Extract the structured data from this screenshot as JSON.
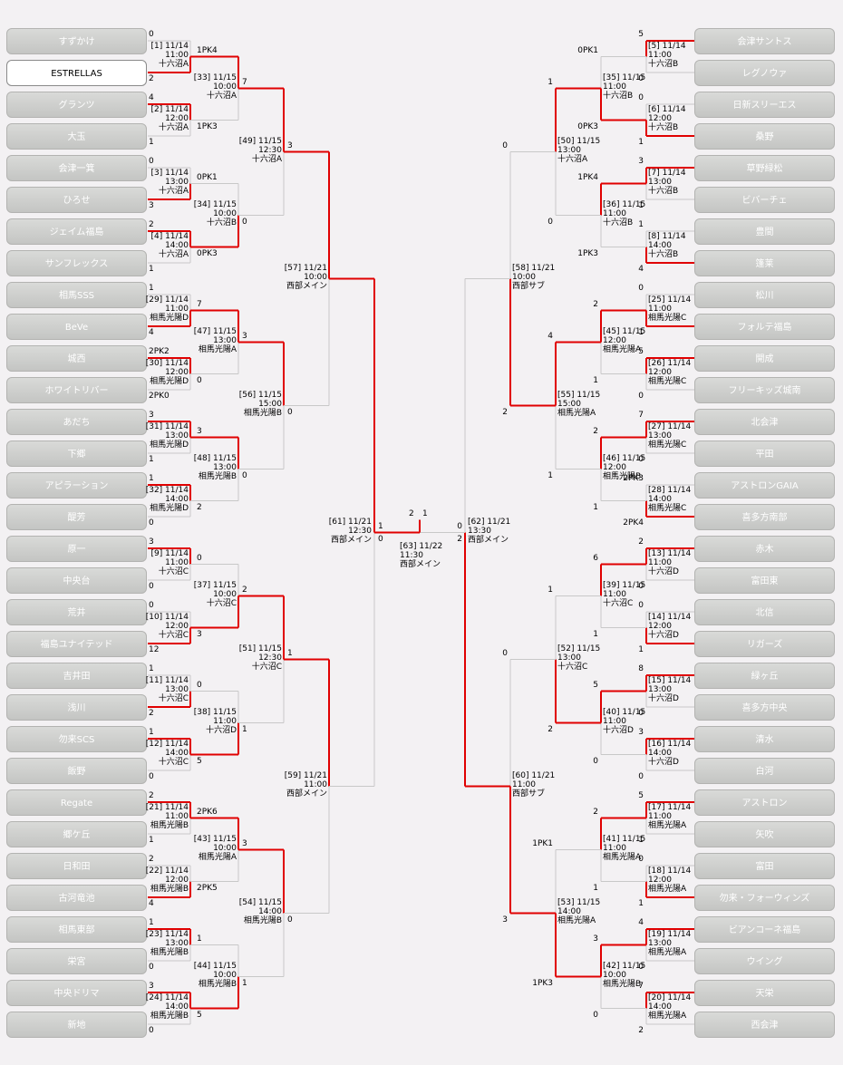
{
  "teams_left": [
    "すずかけ",
    "ESTRELLAS",
    "グランツ",
    "大玉",
    "会津一箕",
    "ひろせ",
    "ジェイム福島",
    "サンフレックス",
    "相馬SSS",
    "BeVe",
    "城西",
    "ホワイトリバー",
    "あだち",
    "下郷",
    "アピラーション",
    "醍芳",
    "原一",
    "中央台",
    "荒井",
    "福島ユナイテッド",
    "吉井田",
    "浅川",
    "勿来SCS",
    "飯野",
    "Regate",
    "郷ケ丘",
    "日和田",
    "古河竜池",
    "相馬東部",
    "栄宮",
    "中央ドリマ",
    "新地"
  ],
  "teams_right": [
    "会津サントス",
    "レグノウァ",
    "日新スリーエス",
    "桑野",
    "草野緑松",
    "ビバーチェ",
    "豊間",
    "篷莱",
    "松川",
    "フォルテ福島",
    "開成",
    "フリーキッズ城南",
    "北会津",
    "平田",
    "アストロンGAIA",
    "喜多方南部",
    "赤木",
    "富田東",
    "北信",
    "リガーズ",
    "緑ヶ丘",
    "喜多方中央",
    "清水",
    "白河",
    "アストロン",
    "矢吹",
    "富田",
    "勿来・フォーウィンズ",
    "ビアンコーネ福島",
    "ウイング",
    "天栄",
    "西会津"
  ],
  "highlight_team": "ESTRELLAS",
  "line_color_win": "#e00000",
  "line_color_normal": "#c8c8c8",
  "r1_left": [
    {
      "id": "[1] 11/14",
      "time": "11:00",
      "venue": "十六沼A",
      "s1": "0",
      "s2": "2"
    },
    {
      "id": "[2] 11/14",
      "time": "12:00",
      "venue": "十六沼A",
      "s1": "4",
      "s2": "1"
    },
    {
      "id": "[3] 11/14",
      "time": "13:00",
      "venue": "十六沼A",
      "s1": "0",
      "s2": "3"
    },
    {
      "id": "[4] 11/14",
      "time": "14:00",
      "venue": "十六沼A",
      "s1": "2",
      "s2": "1"
    },
    {
      "id": "[29] 11/14",
      "time": "11:00",
      "venue": "相馬光陽D",
      "s1": "1",
      "s2": "4"
    },
    {
      "id": "[30] 11/14",
      "time": "12:00",
      "venue": "相馬光陽D",
      "s1": "2PK2",
      "s2": "2PK0"
    },
    {
      "id": "[31] 11/14",
      "time": "13:00",
      "venue": "相馬光陽D",
      "s1": "3",
      "s2": "1"
    },
    {
      "id": "[32] 11/14",
      "time": "14:00",
      "venue": "相馬光陽D",
      "s1": "1",
      "s2": "0"
    },
    {
      "id": "[9] 11/14",
      "time": "11:00",
      "venue": "十六沼C",
      "s1": "3",
      "s2": "0"
    },
    {
      "id": "[10] 11/14",
      "time": "12:00",
      "venue": "十六沼C",
      "s1": "0",
      "s2": "12"
    },
    {
      "id": "[11] 11/14",
      "time": "13:00",
      "venue": "十六沼C",
      "s1": "1",
      "s2": "2"
    },
    {
      "id": "[12] 11/14",
      "time": "14:00",
      "venue": "十六沼C",
      "s1": "1",
      "s2": "0"
    },
    {
      "id": "[21] 11/14",
      "time": "11:00",
      "venue": "相馬光陽B",
      "s1": "2",
      "s2": "1"
    },
    {
      "id": "[22] 11/14",
      "time": "12:00",
      "venue": "相馬光陽B",
      "s1": "2",
      "s2": "4"
    },
    {
      "id": "[23] 11/14",
      "time": "13:00",
      "venue": "相馬光陽B",
      "s1": "1",
      "s2": "0"
    },
    {
      "id": "[24] 11/14",
      "time": "14:00",
      "venue": "相馬光陽B",
      "s1": "3",
      "s2": "0"
    }
  ],
  "r2_left": [
    {
      "id": "[33] 11/15",
      "time": "10:00",
      "venue": "十六沼A",
      "s1": "1PK4",
      "s2": "1PK3"
    },
    {
      "id": "[34] 11/15",
      "time": "10:00",
      "venue": "十六沼B",
      "s1": "0PK1",
      "s2": "0PK3"
    },
    {
      "id": "[47] 11/15",
      "time": "13:00",
      "venue": "相馬光陽A",
      "s1": "7",
      "s2": "0"
    },
    {
      "id": "[48] 11/15",
      "time": "13:00",
      "venue": "相馬光陽B",
      "s1": "3",
      "s2": "2"
    },
    {
      "id": "[37] 11/15",
      "time": "10:00",
      "venue": "十六沼C",
      "s1": "0",
      "s2": "3"
    },
    {
      "id": "[38] 11/15",
      "time": "11:00",
      "venue": "十六沼D",
      "s1": "0",
      "s2": "5"
    },
    {
      "id": "[43] 11/15",
      "time": "10:00",
      "venue": "相馬光陽A",
      "s1": "2PK6",
      "s2": "2PK5"
    },
    {
      "id": "[44] 11/15",
      "time": "10:00",
      "venue": "相馬光陽B",
      "s1": "1",
      "s2": "5"
    }
  ],
  "r3_left": [
    {
      "id": "[49] 11/15",
      "time": "12:30",
      "venue": "十六沼A",
      "s1": "7",
      "s2": "0"
    },
    {
      "id": "[56] 11/15",
      "time": "15:00",
      "venue": "相馬光陽B",
      "s1": "3",
      "s2": "0"
    },
    {
      "id": "[51] 11/15",
      "time": "12:30",
      "venue": "十六沼C",
      "s1": "2",
      "s2": "1"
    },
    {
      "id": "[54] 11/15",
      "time": "14:00",
      "venue": "相馬光陽B",
      "s1": "3",
      "s2": "1"
    }
  ],
  "r4_left": [
    {
      "id": "[57] 11/21",
      "time": "10:00",
      "venue": "西部メイン",
      "s1": "3",
      "s2": "0"
    },
    {
      "id": "[59] 11/21",
      "time": "11:00",
      "venue": "西部メイン",
      "s1": "1",
      "s2": "0"
    }
  ],
  "r5_left": {
    "id": "[61] 11/21",
    "time": "12:30",
    "venue": "西部メイン",
    "s1": "1",
    "s2": "0"
  },
  "r1_right": [
    {
      "id": "[5] 11/14",
      "time": "11:00",
      "venue": "十六沼B",
      "s1": "5",
      "s2": "0"
    },
    {
      "id": "[6] 11/14",
      "time": "12:00",
      "venue": "十六沼B",
      "s1": "0",
      "s2": "1"
    },
    {
      "id": "[7] 11/14",
      "time": "13:00",
      "venue": "十六沼B",
      "s1": "3",
      "s2": "1"
    },
    {
      "id": "[8] 11/14",
      "time": "14:00",
      "venue": "十六沼B",
      "s1": "1",
      "s2": "4"
    },
    {
      "id": "[25] 11/14",
      "time": "11:00",
      "venue": "相馬光陽C",
      "s1": "0",
      "s2": "1"
    },
    {
      "id": "[26] 11/14",
      "time": "12:00",
      "venue": "相馬光陽C",
      "s1": "5",
      "s2": "0"
    },
    {
      "id": "[27] 11/14",
      "time": "13:00",
      "venue": "相馬光陽C",
      "s1": "7",
      "s2": "0"
    },
    {
      "id": "[28] 11/14",
      "time": "14:00",
      "venue": "相馬光陽C",
      "s1": "2PK3",
      "s2": "2PK4"
    },
    {
      "id": "[13] 11/14",
      "time": "11:00",
      "venue": "十六沼D",
      "s1": "2",
      "s2": "0"
    },
    {
      "id": "[14] 11/14",
      "time": "12:00",
      "venue": "十六沼D",
      "s1": "0",
      "s2": "1"
    },
    {
      "id": "[15] 11/14",
      "time": "13:00",
      "venue": "十六沼D",
      "s1": "8",
      "s2": "0"
    },
    {
      "id": "[16] 11/14",
      "time": "14:00",
      "venue": "十六沼D",
      "s1": "3",
      "s2": "0"
    },
    {
      "id": "[17] 11/14",
      "time": "11:00",
      "venue": "相馬光陽A",
      "s1": "5",
      "s2": "1"
    },
    {
      "id": "[18] 11/14",
      "time": "12:00",
      "venue": "相馬光陽A",
      "s1": "0",
      "s2": "1"
    },
    {
      "id": "[19] 11/14",
      "time": "13:00",
      "venue": "相馬光陽A",
      "s1": "4",
      "s2": "0"
    },
    {
      "id": "[20] 11/14",
      "time": "14:00",
      "venue": "相馬光陽A",
      "s1": "7",
      "s2": "2"
    }
  ],
  "r2_right": [
    {
      "id": "[35] 11/15",
      "time": "11:00",
      "venue": "十六沼B",
      "s1": "0PK1",
      "s2": "0PK3"
    },
    {
      "id": "[36] 11/15",
      "time": "11:00",
      "venue": "十六沼B",
      "s1": "1PK4",
      "s2": "1PK3"
    },
    {
      "id": "[45] 11/15",
      "time": "12:00",
      "venue": "相馬光陽A",
      "s1": "2",
      "s2": "1"
    },
    {
      "id": "[46] 11/15",
      "time": "12:00",
      "venue": "相馬光陽B",
      "s1": "2",
      "s2": "1"
    },
    {
      "id": "[39] 11/15",
      "time": "11:00",
      "venue": "十六沼C",
      "s1": "6",
      "s2": "1"
    },
    {
      "id": "[40] 11/15",
      "time": "11:00",
      "venue": "十六沼D",
      "s1": "5",
      "s2": "0"
    },
    {
      "id": "[41] 11/15",
      "time": "11:00",
      "venue": "相馬光陽A",
      "s1": "2",
      "s2": "1"
    },
    {
      "id": "[42] 11/15",
      "time": "10:00",
      "venue": "相馬光陽B",
      "s1": "3",
      "s2": "0"
    }
  ],
  "r3_right": [
    {
      "id": "[50] 11/15",
      "time": "13:00",
      "venue": "十六沼A",
      "s1": "1",
      "s2": "0"
    },
    {
      "id": "[55] 11/15",
      "time": "15:00",
      "venue": "相馬光陽A",
      "s1": "4",
      "s2": "1"
    },
    {
      "id": "[52] 11/15",
      "time": "13:00",
      "venue": "十六沼C",
      "s1": "1",
      "s2": "2"
    },
    {
      "id": "[53] 11/15",
      "time": "14:00",
      "venue": "相馬光陽A",
      "s1": "1PK1",
      "s2": "1PK3"
    }
  ],
  "r4_right": [
    {
      "id": "[58] 11/21",
      "time": "10:00",
      "venue": "西部サブ",
      "s1": "0",
      "s2": "2"
    },
    {
      "id": "[60] 11/21",
      "time": "11:00",
      "venue": "西部サブ",
      "s1": "0",
      "s2": "3"
    }
  ],
  "r5_right": {
    "id": "[62] 11/21",
    "time": "13:30",
    "venue": "西部メイン",
    "s1": "0",
    "s2": "2"
  },
  "final": {
    "id": "[63] 11/22",
    "time": "11:30",
    "venue": "西部メイン",
    "s1": "2",
    "s2": "1"
  }
}
